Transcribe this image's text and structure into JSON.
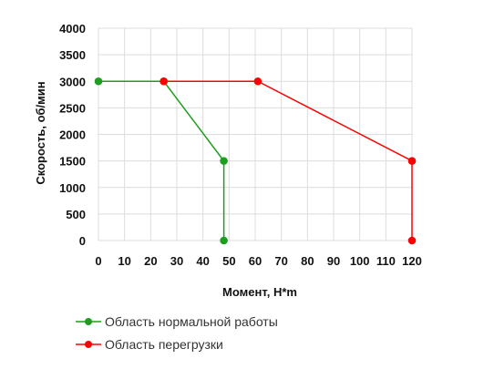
{
  "chart_data": {
    "type": "line",
    "xlabel": "Момент, Н*m",
    "ylabel": "Скорость, об/мин",
    "x_ticks": [
      0,
      10,
      20,
      30,
      40,
      50,
      60,
      70,
      80,
      90,
      100,
      110,
      120
    ],
    "x_tick_labels": [
      "0",
      "10",
      "20",
      "30",
      "40",
      "50",
      "60",
      "70",
      "80",
      "90",
      "100",
      "110",
      "120"
    ],
    "y_ticks": [
      0,
      500,
      1000,
      1500,
      2000,
      2500,
      3000,
      3500,
      4000
    ],
    "y_tick_labels": [
      "0",
      "500",
      "1000",
      "1500",
      "2000",
      "2500",
      "3000",
      "3500",
      "4000"
    ],
    "xlim": [
      0,
      120
    ],
    "ylim": [
      0,
      4000
    ],
    "grid": true,
    "legend_position": "bottom-left",
    "series": [
      {
        "name": "Область нормальной работы",
        "color": "#1e9e1e",
        "points": [
          [
            0,
            3000
          ],
          [
            25,
            3000
          ],
          [
            48,
            1500
          ],
          [
            48,
            0
          ]
        ]
      },
      {
        "name": "Область перегрузки",
        "color": "#ff0000",
        "points": [
          [
            25,
            3000
          ],
          [
            61,
            3000
          ],
          [
            120,
            1500
          ],
          [
            120,
            0
          ]
        ]
      }
    ]
  }
}
